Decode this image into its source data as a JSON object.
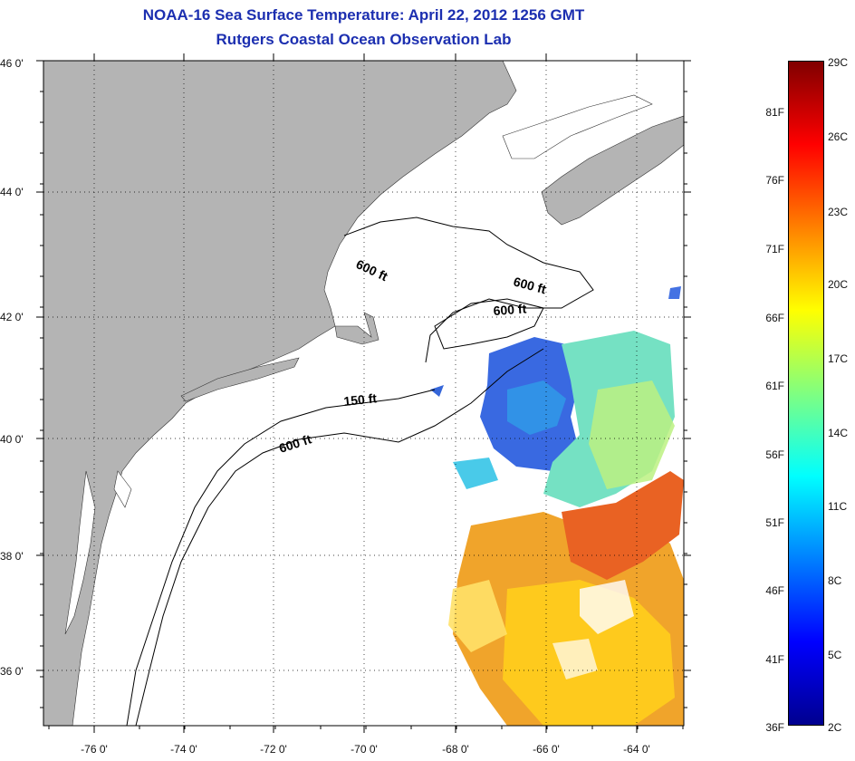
{
  "title_line1": "NOAA-16 Sea Surface Temperature:  April 22, 2012 1256 GMT",
  "title_line2": "Rutgers Coastal Ocean Observation Lab",
  "lat_ticks": [
    "46 0'",
    "44 0'",
    "42 0'",
    "40 0'",
    "38 0'",
    "36 0'"
  ],
  "lon_ticks": [
    "-76 0'",
    "-74 0'",
    "-72 0'",
    "-70 0'",
    "-68 0'",
    "-66 0'",
    "-64 0'"
  ],
  "contour_labels": [
    "600 ft",
    "600 ft",
    "600 ft",
    "150 ft",
    "600 ft"
  ],
  "colorbar": {
    "fahrenheit": [
      "81F",
      "76F",
      "71F",
      "66F",
      "61F",
      "56F",
      "51F",
      "46F",
      "41F",
      "36F"
    ],
    "celsius": [
      "29C",
      "26C",
      "23C",
      "20C",
      "17C",
      "14C",
      "11C",
      "8C",
      "5C",
      "2C"
    ],
    "colors": [
      "#800000",
      "#ff0000",
      "#ff8000",
      "#ffff00",
      "#80ff80",
      "#00ffff",
      "#0080ff",
      "#0000ff",
      "#00008f"
    ]
  },
  "colors": {
    "land": "#b4b4b4",
    "title": "#1c2fb0",
    "water": "#ffffff"
  }
}
